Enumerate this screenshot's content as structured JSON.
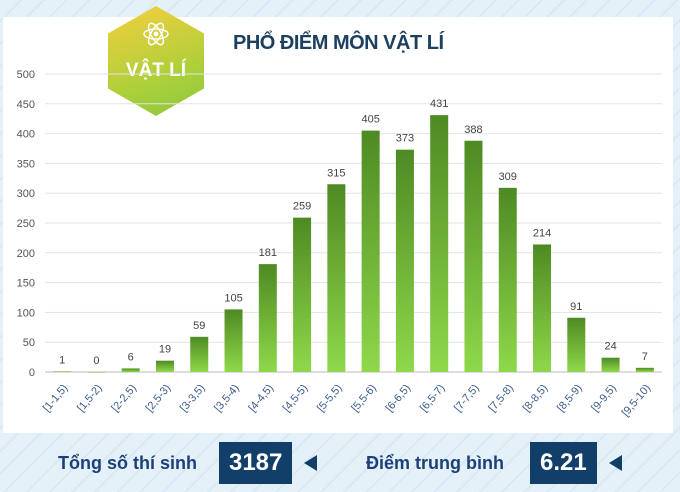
{
  "badge": {
    "label": "VẬT LÍ",
    "icon": "atom-icon"
  },
  "chart_data": {
    "type": "bar",
    "title": "PHỔ ĐIỂM MÔN VẬT LÍ",
    "categories": [
      "[1-1,5)",
      "[1,5-2)",
      "[2-2,5)",
      "[2,5-3)",
      "[3-3,5)",
      "[3,5-4)",
      "[4-4,5)",
      "[4,5-5)",
      "[5-5,5)",
      "[5,5-6)",
      "[6-6,5)",
      "[6,5-7)",
      "[7-7,5)",
      "[7,5-8)",
      "[8-8,5)",
      "[8,5-9)",
      "[9-9,5)",
      "[9,5-10)"
    ],
    "values": [
      1,
      0,
      6,
      19,
      59,
      105,
      181,
      259,
      315,
      405,
      373,
      431,
      388,
      309,
      214,
      91,
      24,
      7
    ],
    "yticks": [
      0,
      50,
      100,
      150,
      200,
      250,
      300,
      350,
      400,
      450,
      500
    ],
    "ylim": [
      0,
      500
    ],
    "grid": true,
    "colors": {
      "bar_top": "#4e8a23",
      "bar_bottom": "#8fd84a"
    }
  },
  "footer": {
    "total_label": "Tổng số thí sinh",
    "total_value": "3187",
    "avg_label": "Điểm trung bình",
    "avg_value": "6.21"
  }
}
